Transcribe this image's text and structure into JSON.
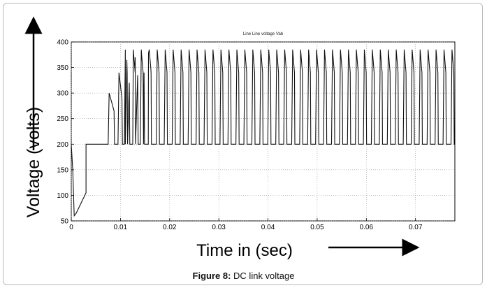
{
  "caption": {
    "label": "Figure 8:",
    "text": "DC link voltage"
  },
  "chart_data": {
    "type": "line",
    "title": "Line Line voltage Vab",
    "xlabel": "Time in (sec)",
    "ylabel": "Voltage (volts)",
    "xlim": [
      0,
      0.078
    ],
    "ylim": [
      50,
      400
    ],
    "xticks": [
      "0",
      "0.01",
      "0.02",
      "0.03",
      "0.04",
      "0.05",
      "0.06",
      "0.07"
    ],
    "yticks": [
      "50",
      "100",
      "150",
      "200",
      "250",
      "300",
      "350",
      "400"
    ],
    "grid": true,
    "series": [
      {
        "x": [
          0,
          0.0003,
          0.0006,
          0.001,
          0.0015,
          0.002,
          0.0025,
          0.003,
          0.003,
          0.0075,
          0.0077,
          0.0087,
          0.0088,
          0.0095,
          0.0097,
          0.0103,
          0.0104,
          0.011,
          0.0113,
          0.0118,
          0.0119,
          0.0125,
          0.013,
          0.0135,
          0.0136,
          0.014,
          0.0143,
          0.0148,
          0.0149,
          0.0154,
          0.0157,
          0.0162,
          0.0163,
          0.0167,
          0.078
        ],
        "y": [
          200,
          150,
          60,
          65,
          75,
          85,
          95,
          105,
          200,
          200,
          300,
          265,
          200,
          200,
          340,
          290,
          200,
          200,
          365,
          320,
          200,
          200,
          370,
          335,
          200,
          200,
          375,
          340,
          200,
          200,
          378,
          345,
          200,
          200,
          200
        ]
      }
    ],
    "pulse": {
      "start": 0.0108,
      "end": 0.0775,
      "period": 0.00162,
      "peak": 385,
      "low": 200,
      "trough": 340
    }
  }
}
